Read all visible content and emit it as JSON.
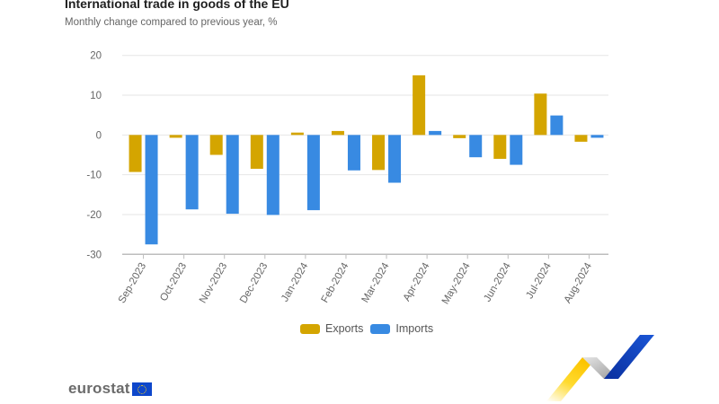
{
  "header": {
    "title": "International trade in goods of the EU",
    "subtitle": "Monthly change compared to previous year, %"
  },
  "legend": {
    "items": [
      {
        "label": "Exports",
        "color": "#d4a500"
      },
      {
        "label": "Imports",
        "color": "#388ae2"
      }
    ]
  },
  "logo": {
    "text": "eurostat"
  },
  "chart_data": {
    "type": "bar",
    "title": "International trade in goods of the EU",
    "subtitle": "Monthly change compared to previous year, %",
    "xlabel": "",
    "ylabel": "",
    "ylim": [
      -30,
      20
    ],
    "yticks": [
      20,
      10,
      0,
      -10,
      -20,
      -30
    ],
    "grid": true,
    "legend_position": "bottom-center",
    "categories": [
      "Sep-2023",
      "Oct-2023",
      "Nov-2023",
      "Dec-2023",
      "Jan-2024",
      "Feb-2024",
      "Mar-2024",
      "Apr-2024",
      "May-2024",
      "Jun-2024",
      "Jul-2024",
      "Aug-2024"
    ],
    "series": [
      {
        "name": "Exports",
        "color": "#d4a500",
        "values": [
          -9.3,
          -0.7,
          -5.0,
          -8.5,
          0.6,
          1.0,
          -8.8,
          15.0,
          -0.8,
          -6.0,
          10.4,
          -1.7
        ]
      },
      {
        "name": "Imports",
        "color": "#388ae2",
        "values": [
          -27.5,
          -18.7,
          -19.8,
          -20.1,
          -18.9,
          -8.9,
          -12.0,
          1.0,
          -5.6,
          -7.5,
          4.9,
          -0.7
        ]
      }
    ]
  }
}
